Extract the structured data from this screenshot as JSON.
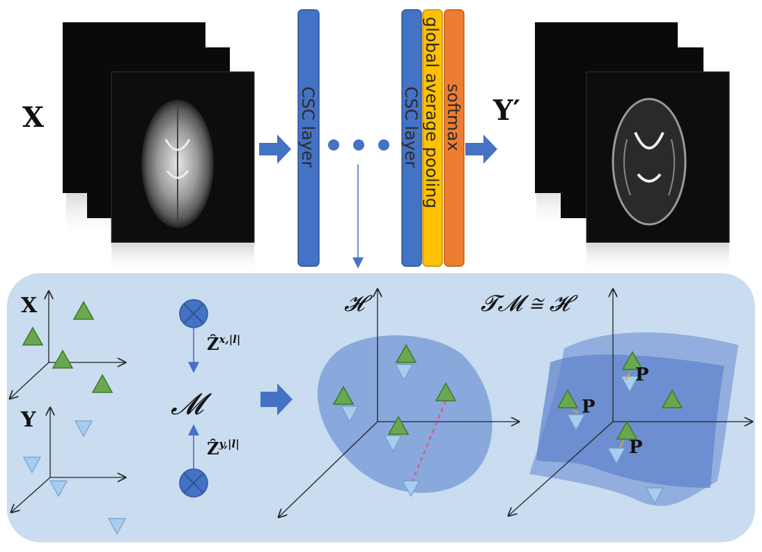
{
  "top": {
    "input_label": "X",
    "output_label": "Y′",
    "layers": [
      {
        "label": "CSC layer",
        "color": "#4472c4"
      },
      {
        "label": "CSC layer",
        "color": "#4472c4"
      },
      {
        "label": "global average pooling",
        "color": "#ffc000"
      },
      {
        "label": "softmax",
        "color": "#ed7d31"
      }
    ]
  },
  "bottom": {
    "x_label": "X",
    "y_label": "Y",
    "z_x_label": "Ẑ",
    "z_x_sup": "x,|l|",
    "z_y_label": "Ẑ",
    "z_y_sup": "y,|l|",
    "manifold_label": "𝓜",
    "h_label": "𝓗",
    "tangent_label": "𝓣𝓜 ≅ 𝓗",
    "p_label": "P"
  },
  "colors": {
    "panel": "#c9dcf0",
    "blob": "#7e9fd8",
    "triangle_up": "#6aa84f",
    "triangle_down": "#a9cdee",
    "arrow": "#4472c4"
  }
}
